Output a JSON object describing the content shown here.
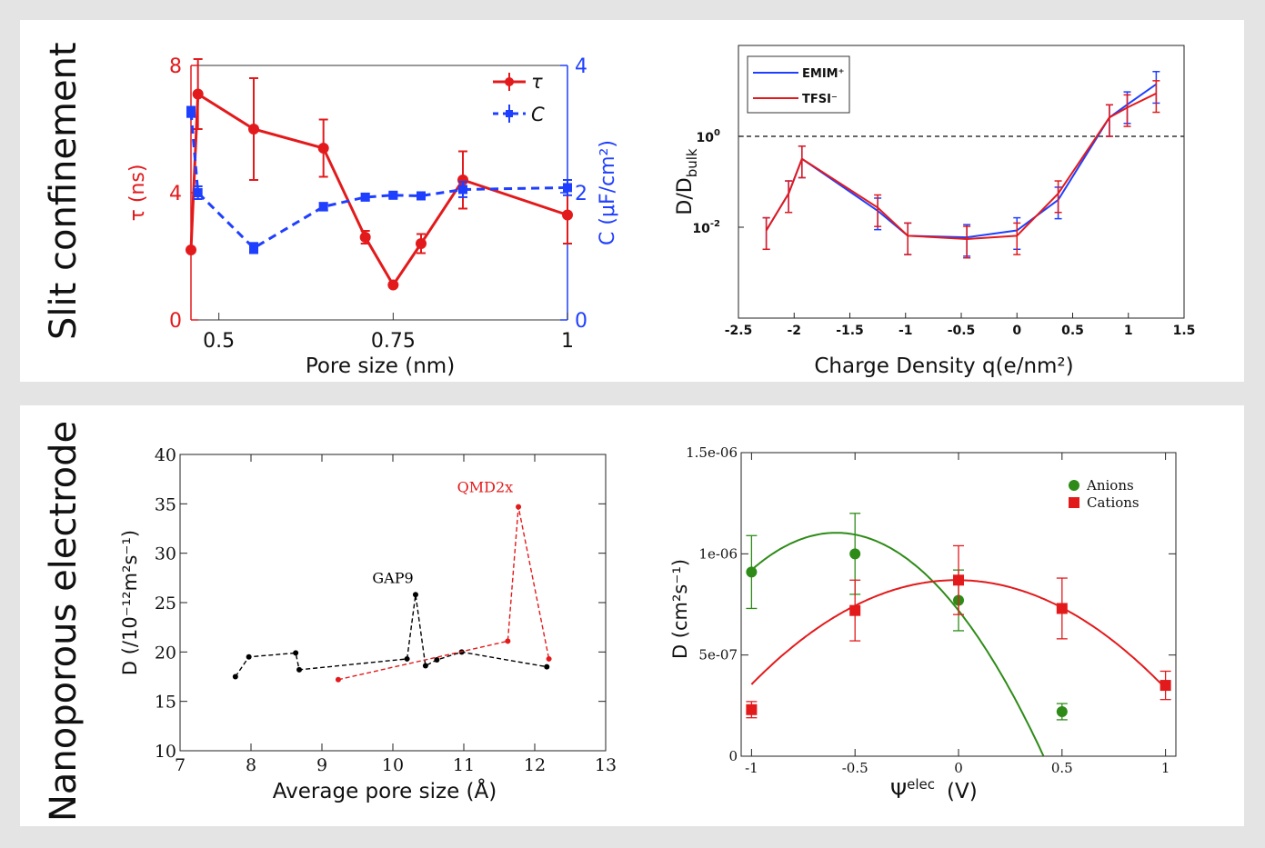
{
  "rows": {
    "top_label": "Slit confinement",
    "bottom_label": "Nanoporous electrode"
  },
  "chart_data": [
    {
      "id": "tau_capacitance",
      "type": "line",
      "xlabel": "Pore size (nm)",
      "ylabel_left": "τ (ns)",
      "ylabel_right": "C (μF/cm²)",
      "xlim": [
        0.46,
        1.0
      ],
      "ylim_left": [
        0,
        8
      ],
      "ylim_right": [
        0,
        4
      ],
      "x_ticks": [
        0.5,
        0.75,
        1
      ],
      "x_tick_labels": [
        "0.5",
        "0.75",
        "1"
      ],
      "y_left_ticks": [
        0,
        4,
        8
      ],
      "y_left_tick_labels": [
        "0",
        "4",
        "8"
      ],
      "y_right_ticks": [
        0,
        2,
        4
      ],
      "y_right_tick_labels": [
        "0",
        "2",
        "4"
      ],
      "legend_position": "top-right",
      "colors": {
        "left_axis": "#e31a1c",
        "right_axis": "#1f3fff"
      },
      "series": [
        {
          "name": "τ",
          "axis": "left",
          "color": "#e31a1c",
          "style": "solid",
          "marker": "circle",
          "x": [
            0.46,
            0.47,
            0.55,
            0.65,
            0.71,
            0.75,
            0.79,
            0.85,
            1.0
          ],
          "y": [
            2.2,
            7.1,
            6.0,
            5.4,
            2.6,
            1.1,
            2.4,
            4.4,
            3.3
          ],
          "err": [
            0.0,
            1.1,
            1.6,
            0.9,
            0.2,
            0.0,
            0.3,
            0.9,
            0.9
          ]
        },
        {
          "name": "C",
          "axis": "right",
          "color": "#1f3fff",
          "style": "dashed",
          "marker": "square",
          "x": [
            0.46,
            0.47,
            0.55,
            0.65,
            0.71,
            0.75,
            0.79,
            0.85,
            1.0
          ],
          "y": [
            3.27,
            2.0,
            1.13,
            1.78,
            1.93,
            1.96,
            1.95,
            2.05,
            2.08
          ],
          "err": [
            0.08,
            0.1,
            0.08,
            0.06,
            0.05,
            0.04,
            0.05,
            0.12,
            0.12
          ]
        }
      ]
    },
    {
      "id": "diffusion_charge",
      "type": "line",
      "xlabel": "Charge Density q(e/nm²)",
      "ylabel": "D/D_bulk",
      "xlim": [
        -2.5,
        1.5
      ],
      "ylim_log10": [
        -4,
        2
      ],
      "log_y": true,
      "x_ticks": [
        -2.5,
        -2,
        -1.5,
        -1,
        -0.5,
        0,
        0.5,
        1,
        1.5
      ],
      "x_tick_labels": [
        "-2.5",
        "-2",
        "-1.5",
        "-1",
        "-0.5",
        "0",
        "0.5",
        "1",
        "1.5"
      ],
      "y_ticks_log10": [
        -2,
        0
      ],
      "y_tick_labels": [
        {
          "base": "10",
          "exp": "-2"
        },
        {
          "base": "10",
          "exp": "0"
        }
      ],
      "reference_line": 1,
      "legend_position": "top-left",
      "series": [
        {
          "name": "EMIM⁺",
          "color": "#1f3fff",
          "x": [
            -2.25,
            -2.05,
            -1.93,
            -1.25,
            -0.98,
            -0.45,
            0.0,
            0.37,
            0.83,
            0.99,
            1.25
          ],
          "y": [
            0.0085,
            0.055,
            0.32,
            0.023,
            0.0065,
            0.006,
            0.0085,
            0.04,
            2.6,
            5.0,
            14.0
          ]
        },
        {
          "name": "TFSI⁻",
          "color": "#e31a1c",
          "x": [
            -2.25,
            -2.05,
            -1.93,
            -1.25,
            -0.98,
            -0.45,
            0.0,
            0.37,
            0.83,
            0.99,
            1.25
          ],
          "y": [
            0.0085,
            0.055,
            0.32,
            0.027,
            0.0065,
            0.0055,
            0.0065,
            0.055,
            2.6,
            4.3,
            8.8
          ]
        }
      ]
    },
    {
      "id": "diffusion_pore_size",
      "type": "line",
      "xlabel": "Average pore size (Å)",
      "ylabel": "D (/10⁻¹²m²s⁻¹)",
      "xlim": [
        7,
        13
      ],
      "ylim": [
        10,
        40
      ],
      "x_ticks": [
        7,
        8,
        9,
        10,
        11,
        12,
        13
      ],
      "x_tick_labels": [
        "7",
        "8",
        "9",
        "10",
        "11",
        "12",
        "13"
      ],
      "y_ticks": [
        10,
        15,
        20,
        25,
        30,
        35,
        40
      ],
      "y_tick_labels": [
        "10",
        "15",
        "20",
        "25",
        "30",
        "35",
        "40"
      ],
      "series": [
        {
          "name": "GAP9",
          "color": "#000000",
          "x": [
            7.78,
            7.97,
            8.63,
            8.68,
            10.2,
            10.32,
            10.46,
            10.62,
            10.97,
            12.17
          ],
          "y": [
            17.5,
            19.5,
            19.9,
            18.2,
            19.3,
            25.8,
            18.6,
            19.2,
            20.0,
            18.5
          ]
        },
        {
          "name": "QMD2x",
          "color": "#e31a1c",
          "x": [
            9.23,
            11.62,
            11.77,
            12.2
          ],
          "y": [
            17.2,
            21.1,
            34.7,
            19.3
          ]
        }
      ],
      "annotations": [
        {
          "text": "GAP9",
          "x": 10.0,
          "y": 27.0,
          "color": "#000000"
        },
        {
          "text": "QMD2x",
          "x": 11.3,
          "y": 36.2,
          "color": "#e31a1c"
        }
      ]
    },
    {
      "id": "diffusion_potential",
      "type": "scatter",
      "xlabel": "Ψ",
      "xlabel_sup": "elec",
      "xlabel_unit": "(V)",
      "ylabel": "D (cm²s⁻¹)",
      "xlim": [
        -1.05,
        1.05
      ],
      "ylim": [
        0,
        1.5e-06
      ],
      "x_ticks": [
        -1,
        -0.5,
        0,
        0.5,
        1
      ],
      "x_tick_labels": [
        "-1",
        "-0.5",
        "0",
        "0.5",
        "1"
      ],
      "y_ticks": [
        0,
        5e-07,
        1e-06,
        1.5e-06
      ],
      "y_tick_labels": [
        "0",
        "5e-07",
        "1e-06",
        "1.5e-06"
      ],
      "legend_position": "top-right",
      "series": [
        {
          "name": "Anions",
          "color": "#2e8b18",
          "marker": "circle",
          "x": [
            -1,
            -0.5,
            0,
            0.5
          ],
          "y": [
            9.1e-07,
            1e-06,
            7.7e-07,
            2.2e-07
          ],
          "err": [
            1.8e-07,
            2e-07,
            1.5e-07,
            4e-08
          ],
          "fit": {
            "a": -1.1e-06,
            "b": -1.3e-06,
            "c": 7.2e-07
          }
        },
        {
          "name": "Cations",
          "color": "#e31a1c",
          "marker": "square",
          "x": [
            -1,
            -0.5,
            0,
            0.5,
            1
          ],
          "y": [
            2.3e-07,
            7.2e-07,
            8.7e-07,
            7.3e-07,
            3.5e-07
          ],
          "err": [
            4e-08,
            1.5e-07,
            1.7e-07,
            1.5e-07,
            7e-08
          ],
          "fit": {
            "a": -5.25e-07,
            "b": -1e-08,
            "c": 8.7e-07
          }
        }
      ]
    }
  ]
}
